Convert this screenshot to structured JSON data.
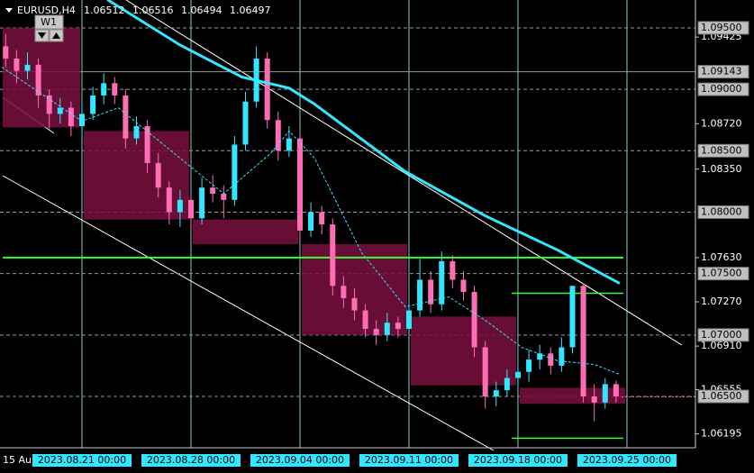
{
  "chart_data": {
    "type": "candlestick",
    "symbol": "EURUSD,H4",
    "header_prices": [
      1.06512,
      1.06516,
      1.06494,
      1.06497
    ],
    "timeframe_button": "W1",
    "up_color": "#33e6ff",
    "down_color": "#ff6eb4",
    "x": [
      -21,
      -18,
      -15,
      -12,
      -9,
      -6,
      -3,
      0,
      3,
      6,
      9,
      12,
      15,
      18,
      21,
      24,
      27,
      30,
      33,
      36,
      39,
      42,
      45,
      48,
      51,
      54,
      57,
      60,
      63,
      66,
      69,
      72,
      75,
      78,
      81,
      84,
      87,
      90,
      93,
      96,
      99,
      102,
      105,
      108,
      111,
      114,
      117,
      120,
      123,
      126,
      129,
      132,
      135,
      138,
      141,
      144,
      147
    ],
    "open": [
      1.0935,
      1.0925,
      1.0915,
      1.092,
      1.0895,
      1.088,
      1.0885,
      1.087,
      1.088,
      1.0895,
      1.0905,
      1.0895,
      1.086,
      1.087,
      1.084,
      1.082,
      1.08,
      1.081,
      1.0795,
      1.082,
      1.0815,
      1.081,
      1.0855,
      1.089,
      1.0925,
      1.0875,
      1.085,
      1.086,
      1.0785,
      1.08,
      1.079,
      1.074,
      1.073,
      1.072,
      1.0705,
      1.07,
      1.071,
      1.0705,
      1.072,
      1.0745,
      1.0725,
      1.076,
      1.0745,
      1.0735,
      1.069,
      1.065,
      1.0655,
      1.0665,
      1.067,
      1.068,
      1.0685,
      1.0675,
      1.069,
      1.074,
      1.065,
      1.0645,
      1.066
    ],
    "high": [
      1.0945,
      1.0932,
      1.093,
      1.0925,
      1.09,
      1.0893,
      1.089,
      1.0888,
      1.0902,
      1.0913,
      1.091,
      1.09,
      1.0878,
      1.0875,
      1.0848,
      1.0825,
      1.0818,
      1.0815,
      1.0828,
      1.083,
      1.0822,
      1.0862,
      1.0898,
      1.0935,
      1.093,
      1.0882,
      1.087,
      1.0865,
      1.0808,
      1.0805,
      1.0795,
      1.0748,
      1.0738,
      1.0725,
      1.0712,
      1.0718,
      1.0715,
      1.0728,
      1.0762,
      1.0752,
      1.0768,
      1.0765,
      1.0752,
      1.074,
      1.0695,
      1.0662,
      1.0672,
      1.0675,
      1.0688,
      1.0692,
      1.069,
      1.0698,
      1.074,
      1.0742,
      1.066,
      1.0665,
      1.0663
    ],
    "low": [
      1.0918,
      1.0905,
      1.0908,
      1.0885,
      1.0868,
      1.0872,
      1.0862,
      1.0862,
      1.0875,
      1.0888,
      1.0888,
      1.0852,
      1.0855,
      1.0832,
      1.0812,
      1.079,
      1.0788,
      1.0785,
      1.079,
      1.0808,
      1.0795,
      1.0805,
      1.085,
      1.0885,
      1.0868,
      1.0842,
      1.0845,
      1.0778,
      1.078,
      1.0782,
      1.0732,
      1.0722,
      1.0712,
      1.0698,
      1.0692,
      1.0695,
      1.0698,
      1.07,
      1.0715,
      1.0718,
      1.072,
      1.0738,
      1.0728,
      1.0682,
      1.064,
      1.0642,
      1.065,
      1.0658,
      1.0662,
      1.0672,
      1.0668,
      1.067,
      1.0685,
      1.0645,
      1.063,
      1.064,
      1.0645
    ],
    "close": [
      1.0925,
      1.0915,
      1.092,
      1.0895,
      1.088,
      1.0885,
      1.087,
      1.088,
      1.0895,
      1.0905,
      1.0895,
      1.086,
      1.087,
      1.084,
      1.082,
      1.08,
      1.081,
      1.0795,
      1.082,
      1.0815,
      1.081,
      1.0855,
      1.089,
      1.0925,
      1.0875,
      1.085,
      1.086,
      1.0785,
      1.08,
      1.079,
      1.074,
      1.073,
      1.072,
      1.0705,
      1.07,
      1.071,
      1.0705,
      1.072,
      1.0745,
      1.0725,
      1.076,
      1.0745,
      1.0735,
      1.069,
      1.065,
      1.0655,
      1.0665,
      1.067,
      1.068,
      1.0685,
      1.0675,
      1.069,
      1.074,
      1.065,
      1.0645,
      1.066,
      1.065
    ],
    "w1": {
      "color": "#7a1040",
      "x": [
        -30,
        0,
        30,
        60,
        90,
        120
      ],
      "open": [
        1.095,
        1.0866,
        1.0794,
        1.0774,
        1.0715,
        1.0657
      ],
      "close": [
        1.0869,
        1.0794,
        1.0774,
        1.07,
        1.0659,
        1.0644
      ]
    },
    "ma_slow": {
      "color": "#33e6ff",
      "x": [
        7,
        27,
        44,
        57,
        64,
        89,
        111,
        131,
        148
      ],
      "values": [
        1.0973,
        1.0936,
        1.091,
        1.0901,
        1.0888,
        1.0833,
        1.0797,
        1.0769,
        1.0742
      ]
    },
    "ma_fast": {
      "color": "#33e6ff",
      "x": [
        -22,
        0,
        10,
        27,
        39,
        52,
        57,
        64,
        77,
        89,
        101,
        111,
        121,
        131,
        141,
        148
      ],
      "values": [
        1.0918,
        1.0874,
        1.0885,
        1.0844,
        1.0815,
        1.0848,
        1.0866,
        1.0844,
        1.0767,
        1.0723,
        1.0731,
        1.0712,
        1.069,
        1.0679,
        1.0676,
        1.0668
      ]
    },
    "green_levels": {
      "color": "#33ff33",
      "values": [
        1.0763,
        1.0734,
        1.0616
      ]
    },
    "xlim": [
      -22.56,
      168.85
    ],
    "ylim": [
      1.06082,
      1.09727
    ],
    "xticks": [
      {
        "value": -22,
        "label": "15 Au"
      },
      {
        "value": 0,
        "label": "2023.08.21 00:00"
      },
      {
        "value": 30,
        "label": "2023.08.28 00:00"
      },
      {
        "value": 60,
        "label": "2023.09.04 00:00"
      },
      {
        "value": 90,
        "label": "2023.09.11 00:00"
      },
      {
        "value": 120,
        "label": "2023.09.18 00:00"
      },
      {
        "value": 150,
        "label": "2023.09.25 00:00"
      }
    ],
    "yticks": [
      {
        "value": 1.09425,
        "label": "1.09425"
      },
      {
        "value": 1.0872,
        "label": "1.08720"
      },
      {
        "value": 1.0835,
        "label": "1.08350"
      },
      {
        "value": 1.0763,
        "label": "1.07630"
      },
      {
        "value": 1.0727,
        "label": "1.07270"
      },
      {
        "value": 1.0691,
        "label": "1.06910"
      },
      {
        "value": 1.06555,
        "label": "1.06555"
      },
      {
        "value": 1.06195,
        "label": "1.06195"
      }
    ],
    "levels": [
      {
        "value": 1.095,
        "label": "1.09500"
      },
      {
        "value": 1.09143,
        "label": "1.09143"
      },
      {
        "value": 1.09,
        "label": "1.09000"
      },
      {
        "value": 1.085,
        "label": "1.08500"
      },
      {
        "value": 1.08,
        "label": "1.08000"
      },
      {
        "value": 1.075,
        "label": "1.07500"
      },
      {
        "value": 1.07,
        "label": "1.07000"
      },
      {
        "value": 1.065,
        "label": "1.06500"
      }
    ]
  }
}
